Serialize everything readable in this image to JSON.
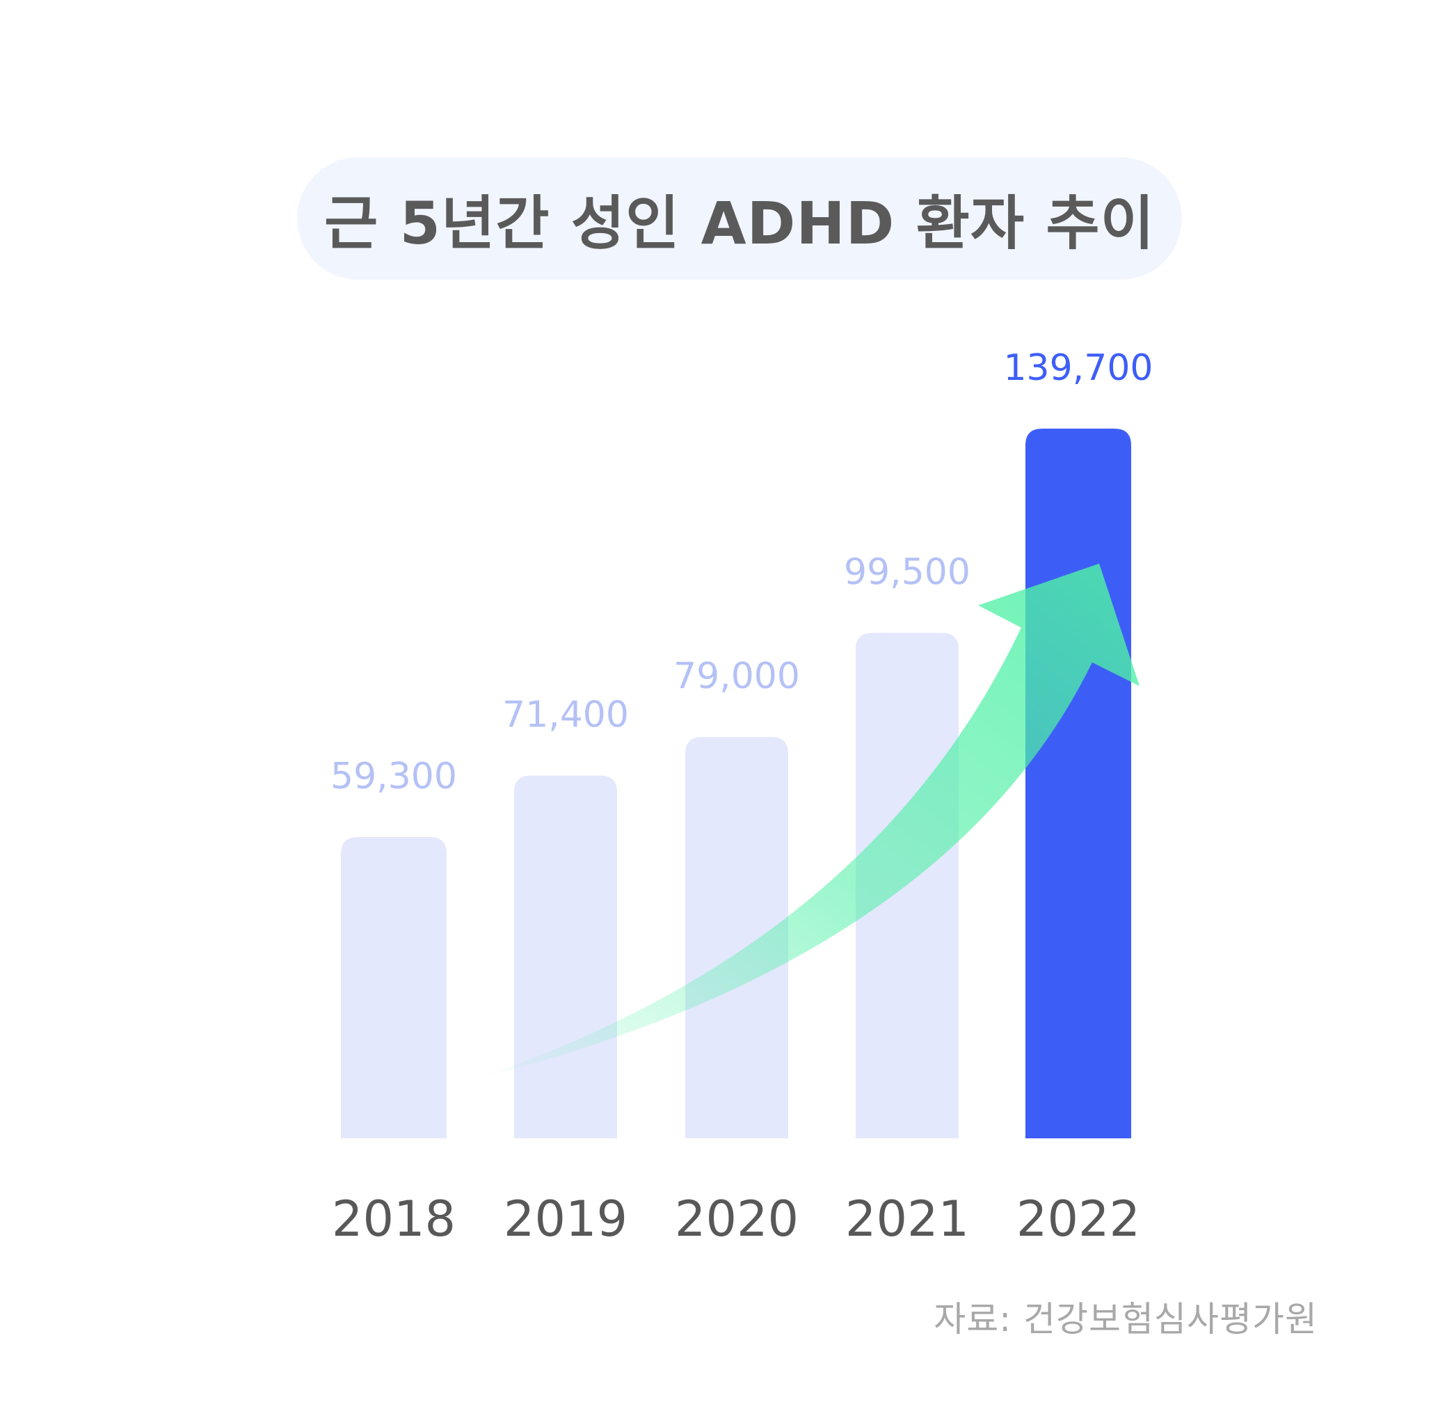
{
  "title": "근 5년간 성인 ADHD 환자 추이",
  "source": "자료: 건강보험심사평가원",
  "colors": {
    "bar": "#e3e8fc",
    "bar_highlight": "#3d5ef6",
    "value_label": "#b4c1f6",
    "value_label_highlight": "#3d5ef6",
    "year_label": "#585858",
    "arrow": "#4ff0a6",
    "title_pill": "#f1f5fe"
  },
  "chart_data": {
    "type": "bar",
    "title": "근 5년간 성인 ADHD 환자 추이",
    "categories": [
      "2018",
      "2019",
      "2020",
      "2021",
      "2022"
    ],
    "values": [
      59300,
      71400,
      79000,
      99500,
      139700
    ],
    "data_labels": [
      "59,300",
      "71,400",
      "79,000",
      "99,500",
      "139,700"
    ],
    "highlight_index": 4,
    "xlabel": "",
    "ylabel": "",
    "grid": false,
    "legend": "none",
    "annotations": [
      "rising trend arrow"
    ]
  }
}
